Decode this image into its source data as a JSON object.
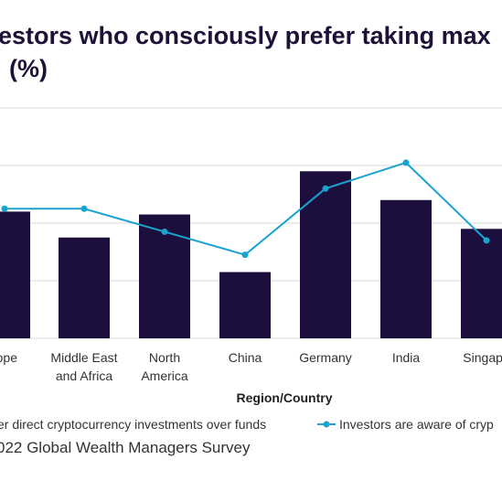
{
  "title_line1": "estors who consciously prefer taking max",
  "title_line2": "(%)",
  "chart_data": {
    "type": "bar",
    "categories": [
      "rope",
      "Middle East\nand Africa",
      "North\nAmerica",
      "China",
      "Germany",
      "India",
      "Singapo"
    ],
    "series": [
      {
        "name": "er direct cryptocurrency investments over funds",
        "type": "bar",
        "color": "#1d0f3d",
        "values": [
          22,
          17.5,
          21.5,
          11.5,
          29,
          24,
          19
        ]
      },
      {
        "name": "Investors are aware of cryp",
        "type": "line",
        "color": "#1aa3cf",
        "values": [
          22.5,
          22.5,
          18.5,
          14.5,
          26,
          30.5,
          17
        ]
      }
    ],
    "xlabel": "Region/Country",
    "ylim": [
      0,
      40
    ],
    "grid": true,
    "legend": "bottom"
  },
  "footer": "022 Global Wealth Managers Survey"
}
